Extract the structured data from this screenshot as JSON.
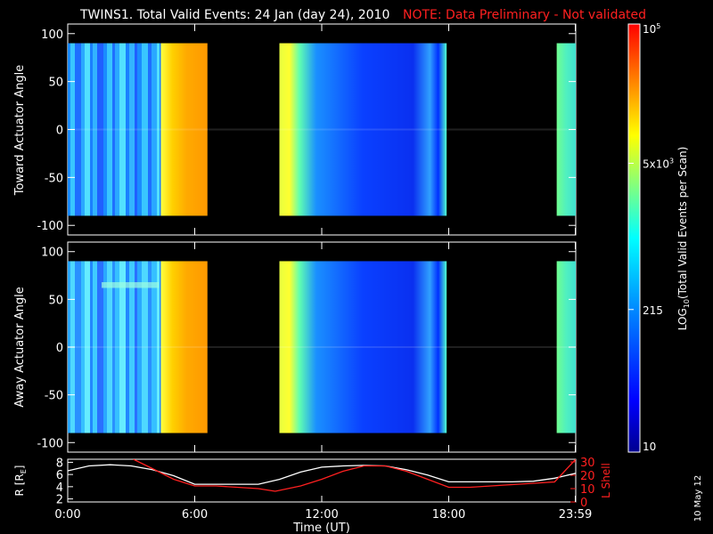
{
  "header": {
    "title": "TWINS1. Total Valid Events: 24 Jan (day  24), 2010",
    "note": "NOTE: Data Preliminary - Not validated"
  },
  "side_label": "10 May 12",
  "colorbar": {
    "label": "LOG10(Total Valid Events per Scan)",
    "label_main": "LOG",
    "label_sub": "10",
    "label_rest": "(Total Valid Events per Scan)",
    "ticks": [
      {
        "value": 100000,
        "base": "10",
        "exp": "5"
      },
      {
        "value": 5000,
        "base": "5x10",
        "exp": "3"
      },
      {
        "value": 215,
        "base": "215",
        "exp": ""
      },
      {
        "value": 10,
        "base": "10",
        "exp": ""
      }
    ],
    "range": [
      10,
      100000
    ],
    "colors": [
      "#00008f",
      "#0000ff",
      "#0080ff",
      "#00ffff",
      "#80ff80",
      "#ffff00",
      "#ff8000",
      "#ff0000"
    ]
  },
  "chart_data": [
    {
      "type": "heatmap",
      "ylabel": "Toward Actuator Angle",
      "ylim": [
        -110,
        110
      ],
      "xlim": [
        0,
        24
      ],
      "yticks": [
        "100",
        "50",
        "0",
        "-50",
        "-100"
      ],
      "ytick_values": [
        100,
        50,
        0,
        -50,
        -100
      ],
      "data_extent_y": [
        -90,
        90
      ],
      "blocks": [
        {
          "start": 0.0,
          "end": 4.4,
          "level": 0.38,
          "note": "blue/cyan striped"
        },
        {
          "start": 4.4,
          "end": 6.6,
          "level": 0.78,
          "note": "yellow to orange"
        },
        {
          "start": 10.0,
          "end": 17.9,
          "level": 0.33,
          "note": "yellow/green edge then blue"
        },
        {
          "start": 23.1,
          "end": 24.0,
          "level": 0.52,
          "note": "green/cyan"
        }
      ]
    },
    {
      "type": "heatmap",
      "ylabel": "Away Actuator Angle",
      "ylim": [
        -110,
        110
      ],
      "xlim": [
        0,
        24
      ],
      "yticks": [
        "100",
        "50",
        "0",
        "-50",
        "-100"
      ],
      "ytick_values": [
        100,
        50,
        0,
        -50,
        -100
      ],
      "data_extent_y": [
        -90,
        90
      ],
      "blocks": [
        {
          "start": 0.0,
          "end": 4.4,
          "level": 0.4,
          "note": "cyan striped"
        },
        {
          "start": 4.4,
          "end": 6.6,
          "level": 0.8,
          "note": "orange"
        },
        {
          "start": 10.0,
          "end": 17.9,
          "level": 0.35,
          "note": "yellow edge then blue"
        },
        {
          "start": 23.1,
          "end": 24.0,
          "level": 0.52,
          "note": "green/cyan"
        }
      ]
    },
    {
      "type": "line",
      "ylabel_left": "R [RE]",
      "ylabel_left_main": "R [R",
      "ylabel_left_sub": "E",
      "ylabel_left_end": "]",
      "ylabel_right": "L Shell",
      "xlabel": "Time (UT)",
      "xticks": [
        "0:00",
        "6:00",
        "12:00",
        "18:00",
        "23:59"
      ],
      "xtick_values": [
        0,
        6,
        12,
        18,
        23.98
      ],
      "xlim": [
        0,
        24
      ],
      "ylim_left": [
        1.5,
        8.5
      ],
      "yticks_left": [
        "8",
        "6",
        "4",
        "2"
      ],
      "ytick_values_left": [
        8,
        6,
        4,
        2
      ],
      "ylim_right": [
        0,
        32
      ],
      "yticks_right": [
        "30",
        "20",
        "10",
        "0"
      ],
      "ytick_values_right": [
        30,
        20,
        10,
        0
      ],
      "series": [
        {
          "color": "#ffffff",
          "axis": "left",
          "x": [
            0,
            1,
            2,
            3,
            4,
            5,
            6,
            7,
            8,
            9,
            10,
            11,
            12,
            13,
            14,
            15,
            16,
            17,
            18,
            19,
            20,
            21,
            22,
            23,
            24
          ],
          "values": [
            6.6,
            7.4,
            7.6,
            7.4,
            6.8,
            5.8,
            4.4,
            4.4,
            4.4,
            4.4,
            5.2,
            6.4,
            7.2,
            7.4,
            7.5,
            7.4,
            6.8,
            5.9,
            4.8,
            4.8,
            4.8,
            4.8,
            4.9,
            5.4,
            6.2
          ]
        },
        {
          "color": "#ff2020",
          "axis": "right",
          "x": [
            3.1,
            4,
            5,
            6,
            7,
            8,
            9,
            9.8,
            11,
            12,
            13,
            14,
            15,
            16,
            17,
            18,
            19,
            20,
            21,
            22,
            23,
            24
          ],
          "values": [
            32,
            25,
            17,
            12,
            12,
            11,
            10,
            8,
            12,
            17,
            23,
            27,
            27,
            23,
            17,
            11,
            11,
            12,
            13,
            14,
            15,
            32
          ]
        }
      ]
    }
  ]
}
